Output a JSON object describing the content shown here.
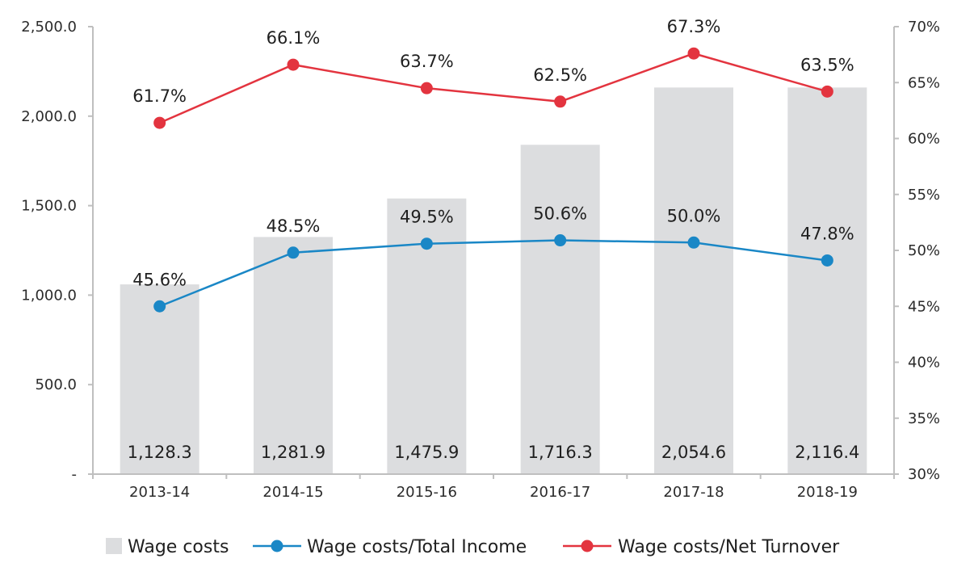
{
  "chart_data": {
    "type": "bar",
    "categories": [
      "2013-14",
      "2014-15",
      "2015-16",
      "2016-17",
      "2017-18",
      "2018-19"
    ],
    "bars": {
      "name": "Wage costs",
      "values": [
        1128.3,
        1281.9,
        1475.9,
        1716.3,
        2054.6,
        2116.4
      ],
      "labels": [
        "1,128.3",
        "1,281.9",
        "1,475.9",
        "1,716.3",
        "2,054.6",
        "2,116.4"
      ],
      "color": "#dcdddf"
    },
    "bar_display_heights": [
      1060,
      1325,
      1540,
      1840,
      2160,
      2160
    ],
    "series": [
      {
        "name": "Wage costs/Total Income",
        "values": [
          45.6,
          48.5,
          49.5,
          50.6,
          50.0,
          47.8
        ],
        "plotted": [
          45.0,
          49.8,
          50.6,
          50.9,
          50.7,
          49.1
        ],
        "labels": [
          "45.6%",
          "48.5%",
          "49.5%",
          "50.6%",
          "50.0%",
          "47.8%"
        ],
        "color": "#1a87c6"
      },
      {
        "name": "Wage costs/Net Turnover",
        "values": [
          61.7,
          66.1,
          63.7,
          62.5,
          67.3,
          63.5
        ],
        "plotted": [
          61.4,
          66.6,
          64.5,
          63.3,
          67.6,
          64.2
        ],
        "labels": [
          "61.7%",
          "66.1%",
          "63.7%",
          "62.5%",
          "67.3%",
          "63.5%"
        ],
        "color": "#e3343f"
      }
    ],
    "y_left": {
      "ylim": [
        0,
        2500
      ],
      "ticks": [
        0,
        500,
        1000,
        1500,
        2000,
        2500
      ],
      "tick_labels": [
        "-",
        "500.0",
        "1,000.0",
        "1,500.0",
        "2,000.0",
        "2,500.0"
      ]
    },
    "y_right": {
      "ylim": [
        30,
        70
      ],
      "ticks": [
        30,
        35,
        40,
        45,
        50,
        55,
        60,
        65,
        70
      ],
      "tick_labels": [
        "30%",
        "35%",
        "40%",
        "45%",
        "50%",
        "55%",
        "60%",
        "65%",
        "70%"
      ]
    },
    "xlabel": "",
    "ylabel": "",
    "grid": false,
    "legend": {
      "placement": "bottom-center",
      "items": [
        "Wage costs",
        "Wage costs/Total Income",
        "Wage costs/Net Turnover"
      ]
    },
    "axis_color": "#bfbfbf"
  }
}
